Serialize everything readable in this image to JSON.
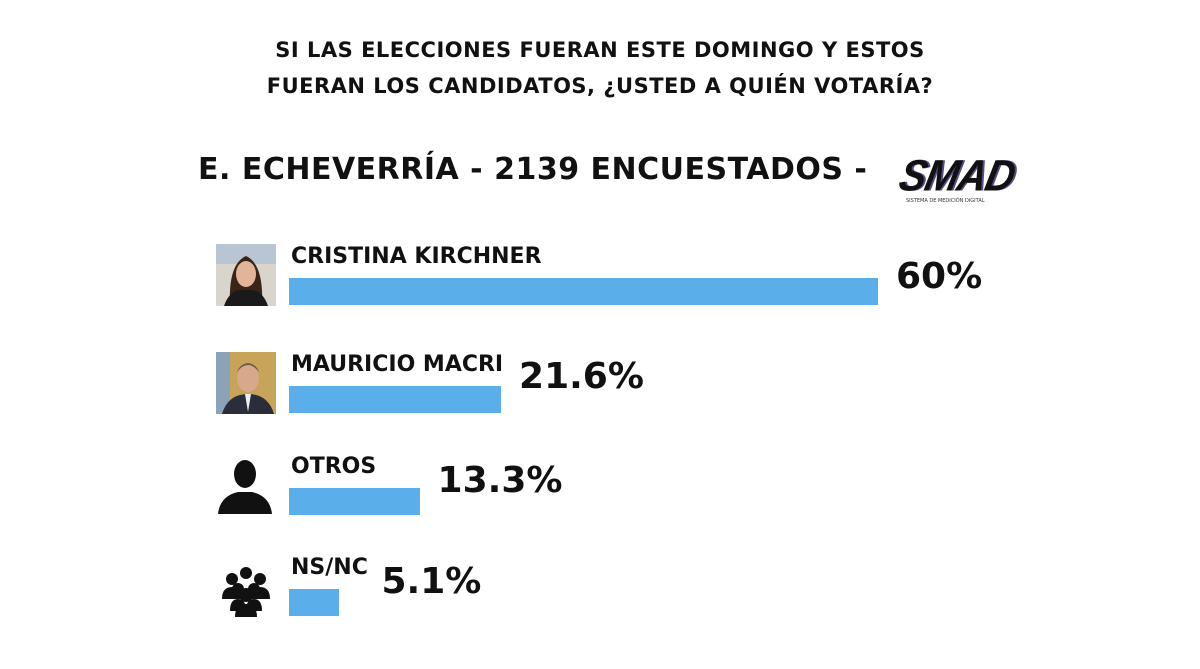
{
  "header": {
    "question_line1": "SI LAS ELECCIONES FUERAN ESTE DOMINGO Y ESTOS",
    "question_line2": "FUERAN LOS CANDIDATOS, ¿USTED A QUIÉN VOTARÍA?",
    "subtitle": "E. ECHEVERRÍA - 2139 ENCUESTADOS -",
    "logo_text": "SMAD",
    "logo_subtext": "SISTEMA DE MEDICIÓN DIGITAL"
  },
  "chart_data": {
    "type": "bar",
    "orientation": "horizontal",
    "bar_color": "#5aaeea",
    "categories": [
      "CRISTINA KIRCHNER",
      "MAURICIO MACRI",
      "OTROS",
      "NS/NC"
    ],
    "values": [
      60,
      21.6,
      13.3,
      5.1
    ],
    "value_labels": [
      "60%",
      "21.6%",
      "13.3%",
      "5.1%"
    ],
    "icons": [
      "photo-cristina-kirchner",
      "photo-mauricio-macri",
      "person-silhouette-icon",
      "group-people-icon"
    ]
  }
}
